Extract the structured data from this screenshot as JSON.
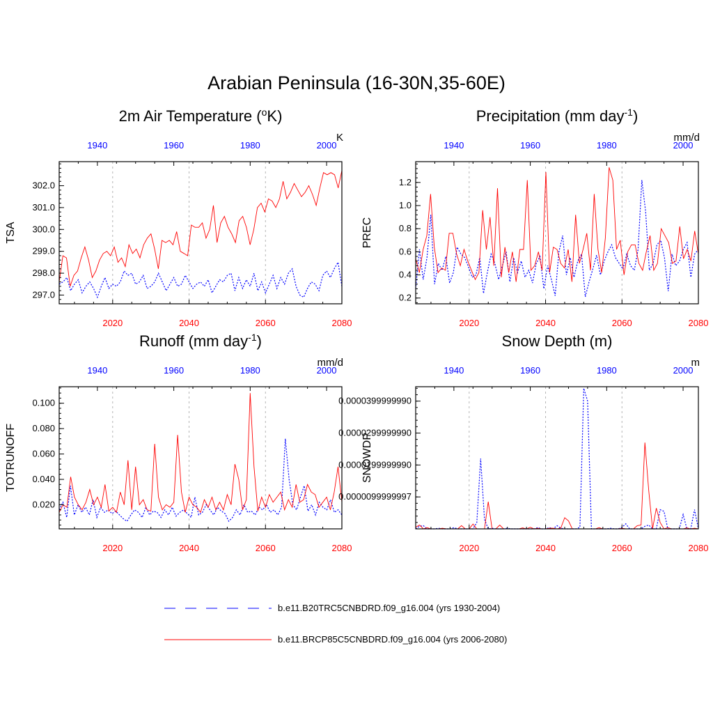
{
  "title": "Arabian Peninsula (16-30N,35-60E)",
  "colors": {
    "historical": "#0000ff",
    "future": "#ff0000",
    "grid": "#b4b4b4",
    "axis": "#000000"
  },
  "legend": {
    "historical_label": "b.e11.B20TRC5CNBDRD.f09_g16.004 (yrs 1930-2004)",
    "future_label": "b.e11.BRCP85C5CNBDRD.f09_g16.004 (yrs 2006-2080)"
  },
  "chart_data": [
    {
      "type": "line",
      "title_main": "2m Air Temperature (",
      "title_sup": "o",
      "title_end": "K)",
      "ylabel": "TSA",
      "units": "K",
      "xlim": [
        2006,
        2080
      ],
      "x_bottom_ticks": [
        "2020",
        "2040",
        "2060",
        "2080"
      ],
      "x_top_ticks": [
        "1940",
        "1960",
        "1980",
        "2000"
      ],
      "ylim": [
        296.6,
        303.1
      ],
      "yticks": [
        297.0,
        298.0,
        299.0,
        300.0,
        301.0,
        302.0
      ],
      "ytick_labels": [
        "297.0",
        "298.0",
        "299.0",
        "300.0",
        "301.0",
        "302.0"
      ],
      "series": [
        {
          "name": "historical",
          "values": [
            297.5,
            297.6,
            297.8,
            297.2,
            297.5,
            297.7,
            297.1,
            297.4,
            297.6,
            297.3,
            296.9,
            297.4,
            297.8,
            297.3,
            297.5,
            297.4,
            297.6,
            298.1,
            297.9,
            298.0,
            297.5,
            297.6,
            297.9,
            297.3,
            297.4,
            297.6,
            298.0,
            297.6,
            297.2,
            297.5,
            297.8,
            297.4,
            297.5,
            297.9,
            297.6,
            297.3,
            297.5,
            297.6,
            297.4,
            297.7,
            297.1,
            297.4,
            297.7,
            297.6,
            297.9,
            298.0,
            297.2,
            297.8,
            297.3,
            297.7,
            297.4,
            298.0,
            297.2,
            297.6,
            297.1,
            297.5,
            297.9,
            297.3,
            297.8,
            297.5,
            298.0,
            298.2,
            297.4,
            297.0,
            296.9,
            297.3,
            297.6,
            297.5,
            297.2,
            297.9,
            298.1,
            297.8,
            298.2,
            298.5,
            297.4
          ]
        },
        {
          "name": "future",
          "values": [
            297.6,
            298.8,
            298.7,
            297.4,
            297.9,
            298.1,
            298.7,
            299.2,
            298.6,
            297.8,
            298.1,
            298.6,
            298.9,
            299.0,
            298.8,
            299.2,
            298.5,
            298.7,
            298.3,
            299.3,
            298.9,
            299.1,
            298.7,
            299.3,
            299.6,
            299.8,
            299.1,
            298.2,
            299.5,
            299.4,
            299.5,
            299.3,
            299.9,
            299.0,
            298.9,
            298.8,
            300.2,
            300.1,
            300.1,
            300.3,
            299.6,
            300.0,
            301.1,
            299.4,
            300.3,
            300.6,
            300.1,
            299.8,
            299.4,
            300.4,
            300.6,
            300.1,
            299.3,
            300.0,
            301.0,
            301.2,
            300.8,
            301.4,
            301.3,
            301.0,
            301.4,
            302.2,
            301.4,
            301.7,
            302.1,
            301.8,
            301.5,
            301.7,
            302.0,
            301.6,
            301.1,
            301.9,
            302.6,
            302.5,
            302.6,
            302.5,
            301.9,
            302.7
          ]
        }
      ]
    },
    {
      "type": "line",
      "title_main": "Precipitation (mm day",
      "title_sup": "-1",
      "title_end": ")",
      "ylabel": "PREC",
      "units": "mm/d",
      "xlim": [
        2006,
        2080
      ],
      "x_bottom_ticks": [
        "2020",
        "2040",
        "2060",
        "2080"
      ],
      "x_top_ticks": [
        "1940",
        "1960",
        "1980",
        "2000"
      ],
      "ylim": [
        0.15,
        1.38
      ],
      "yticks": [
        0.2,
        0.4,
        0.6,
        0.8,
        1.0,
        1.2
      ],
      "ytick_labels": [
        "0.2",
        "0.4",
        "0.6",
        "0.8",
        "1.0",
        "1.2"
      ],
      "series": [
        {
          "name": "historical",
          "values": [
            0.28,
            0.62,
            0.36,
            0.55,
            0.92,
            0.32,
            0.5,
            0.44,
            0.56,
            0.33,
            0.42,
            0.64,
            0.58,
            0.55,
            0.47,
            0.38,
            0.4,
            0.55,
            0.24,
            0.42,
            0.58,
            0.5,
            0.36,
            0.48,
            0.6,
            0.34,
            0.55,
            0.42,
            0.52,
            0.38,
            0.44,
            0.33,
            0.5,
            0.56,
            0.28,
            0.48,
            0.36,
            0.22,
            0.6,
            0.74,
            0.4,
            0.55,
            0.38,
            0.52,
            0.58,
            0.21,
            0.34,
            0.45,
            0.57,
            0.4,
            0.52,
            0.6,
            0.66,
            0.55,
            0.5,
            0.45,
            0.58,
            0.48,
            0.44,
            0.62,
            1.22,
            0.95,
            0.44,
            0.5,
            0.66,
            0.7,
            0.55,
            0.26,
            0.58,
            0.48,
            0.52,
            0.62,
            0.68,
            0.38,
            0.58,
            0.62
          ]
        },
        {
          "name": "future",
          "values": [
            0.54,
            0.42,
            0.62,
            0.74,
            1.1,
            0.64,
            0.42,
            0.46,
            0.44,
            0.76,
            0.76,
            0.58,
            0.48,
            0.62,
            0.52,
            0.44,
            0.36,
            0.42,
            0.96,
            0.62,
            0.9,
            0.48,
            1.15,
            0.38,
            0.64,
            0.42,
            0.6,
            0.34,
            0.62,
            0.62,
            1.22,
            0.44,
            0.48,
            0.6,
            0.44,
            1.29,
            0.42,
            0.64,
            0.62,
            0.5,
            0.46,
            0.62,
            0.34,
            0.92,
            0.5,
            0.62,
            0.76,
            0.44,
            1.1,
            0.62,
            0.42,
            0.72,
            1.33,
            1.22,
            0.62,
            0.7,
            0.4,
            0.6,
            0.66,
            0.66,
            0.5,
            0.44,
            0.6,
            0.74,
            0.44,
            0.5,
            0.8,
            0.74,
            0.68,
            0.5,
            0.52,
            0.82,
            0.54,
            0.62,
            0.52,
            0.78,
            0.58
          ]
        }
      ]
    },
    {
      "type": "line",
      "title_main": "Runoff (mm day",
      "title_sup": "-1",
      "title_end": ")",
      "ylabel": "TOTRUNOFF",
      "units": "mm/d",
      "xlim": [
        2006,
        2080
      ],
      "x_bottom_ticks": [
        "2020",
        "2040",
        "2060",
        "2080"
      ],
      "x_top_ticks": [
        "1940",
        "1960",
        "1980",
        "2000"
      ],
      "ylim": [
        0.001,
        0.113
      ],
      "yticks": [
        0.02,
        0.04,
        0.06,
        0.08,
        0.1
      ],
      "ytick_labels": [
        "0.020",
        "0.040",
        "0.060",
        "0.080",
        "0.100"
      ],
      "series": [
        {
          "name": "historical",
          "values": [
            0.016,
            0.022,
            0.01,
            0.035,
            0.012,
            0.02,
            0.014,
            0.018,
            0.012,
            0.024,
            0.01,
            0.018,
            0.014,
            0.016,
            0.013,
            0.015,
            0.012,
            0.009,
            0.007,
            0.012,
            0.016,
            0.014,
            0.01,
            0.018,
            0.012,
            0.015,
            0.014,
            0.01,
            0.016,
            0.012,
            0.018,
            0.011,
            0.014,
            0.016,
            0.013,
            0.01,
            0.026,
            0.012,
            0.014,
            0.02,
            0.016,
            0.012,
            0.018,
            0.015,
            0.013,
            0.007,
            0.01,
            0.016,
            0.012,
            0.02,
            0.014,
            0.015,
            0.012,
            0.018,
            0.016,
            0.02,
            0.014,
            0.016,
            0.012,
            0.018,
            0.072,
            0.04,
            0.02,
            0.016,
            0.026,
            0.035,
            0.015,
            0.02,
            0.012,
            0.022,
            0.018,
            0.016,
            0.024,
            0.014,
            0.016,
            0.012
          ]
        },
        {
          "name": "future",
          "values": [
            0.014,
            0.02,
            0.018,
            0.042,
            0.026,
            0.02,
            0.016,
            0.022,
            0.032,
            0.02,
            0.026,
            0.018,
            0.036,
            0.015,
            0.018,
            0.014,
            0.03,
            0.02,
            0.055,
            0.016,
            0.05,
            0.02,
            0.024,
            0.016,
            0.015,
            0.068,
            0.026,
            0.016,
            0.02,
            0.018,
            0.022,
            0.075,
            0.03,
            0.014,
            0.026,
            0.02,
            0.018,
            0.014,
            0.024,
            0.018,
            0.026,
            0.016,
            0.022,
            0.016,
            0.028,
            0.02,
            0.052,
            0.04,
            0.016,
            0.024,
            0.108,
            0.05,
            0.015,
            0.026,
            0.018,
            0.028,
            0.022,
            0.026,
            0.03,
            0.016,
            0.024,
            0.018,
            0.036,
            0.022,
            0.024,
            0.036,
            0.03,
            0.028,
            0.018,
            0.022,
            0.026,
            0.016,
            0.03,
            0.05,
            0.022
          ]
        }
      ]
    },
    {
      "type": "line",
      "title_main": "Snow Depth (m)",
      "title_sup": "",
      "title_end": "",
      "ylabel": "SNOWDP",
      "units": "m",
      "xlim": [
        2006,
        2080
      ],
      "x_bottom_ticks": [
        "2020",
        "2040",
        "2060",
        "2080"
      ],
      "x_top_ticks": [
        "1940",
        "1960",
        "1980",
        "2000"
      ],
      "ylim": [
        0,
        4.45e-05
      ],
      "yticks": [
        9.9999997e-06,
        1.9999999e-05,
        2.9999999e-05,
        3.9999999e-05
      ],
      "ytick_labels": [
        "0.0000099999997",
        "0.0000199999990",
        "0.0000299999990",
        "0.0000399999990"
      ],
      "series": [
        {
          "name": "historical",
          "values": [
            0,
            8e-07,
            1e-06,
            0,
            0,
            0,
            2e-07,
            0,
            0,
            0,
            4e-07,
            0,
            0,
            0,
            0,
            0,
            2e-06,
            2.2e-05,
            3e-06,
            0,
            2e-07,
            0,
            0,
            0,
            2e-07,
            0,
            0,
            0,
            0,
            0,
            0,
            0,
            4e-07,
            0,
            0,
            4e-07,
            0,
            1e-06,
            2e-07,
            0,
            0,
            0,
            0,
            5e-07,
            4.4e-05,
            4e-05,
            0,
            0,
            0,
            0,
            0,
            2e-07,
            0,
            0,
            5e-07,
            1.6e-06,
            0,
            0,
            0,
            0,
            8e-07,
            1.2e-06,
            0,
            0,
            6e-06,
            5.5e-06,
            0,
            0,
            0,
            0,
            4.5e-06,
            0,
            0,
            6e-06,
            0
          ]
        },
        {
          "name": "future",
          "values": [
            5e-07,
            1.2e-06,
            0,
            4e-07,
            0,
            0,
            0,
            2e-07,
            0,
            0,
            0,
            0,
            1e-06,
            0,
            0,
            1.5e-06,
            0,
            0,
            0,
            8.5e-06,
            0,
            0,
            1.2e-06,
            0,
            0,
            0,
            0,
            0,
            3e-07,
            0,
            5e-07,
            0,
            2e-07,
            0,
            0,
            2e-07,
            2e-07,
            0,
            3e-07,
            3.5e-06,
            2.5e-06,
            0,
            0,
            0,
            0,
            0,
            0,
            0,
            4e-07,
            0,
            0,
            0,
            0,
            0,
            2e-07,
            0,
            0,
            0,
            1e-06,
            1.2e-06,
            2.7e-05,
            1.2e-05,
            0,
            6.5e-06,
            2e-06,
            0,
            4e-07,
            0,
            0,
            0,
            0,
            3e-07,
            0,
            2e-07,
            0
          ]
        }
      ]
    }
  ]
}
